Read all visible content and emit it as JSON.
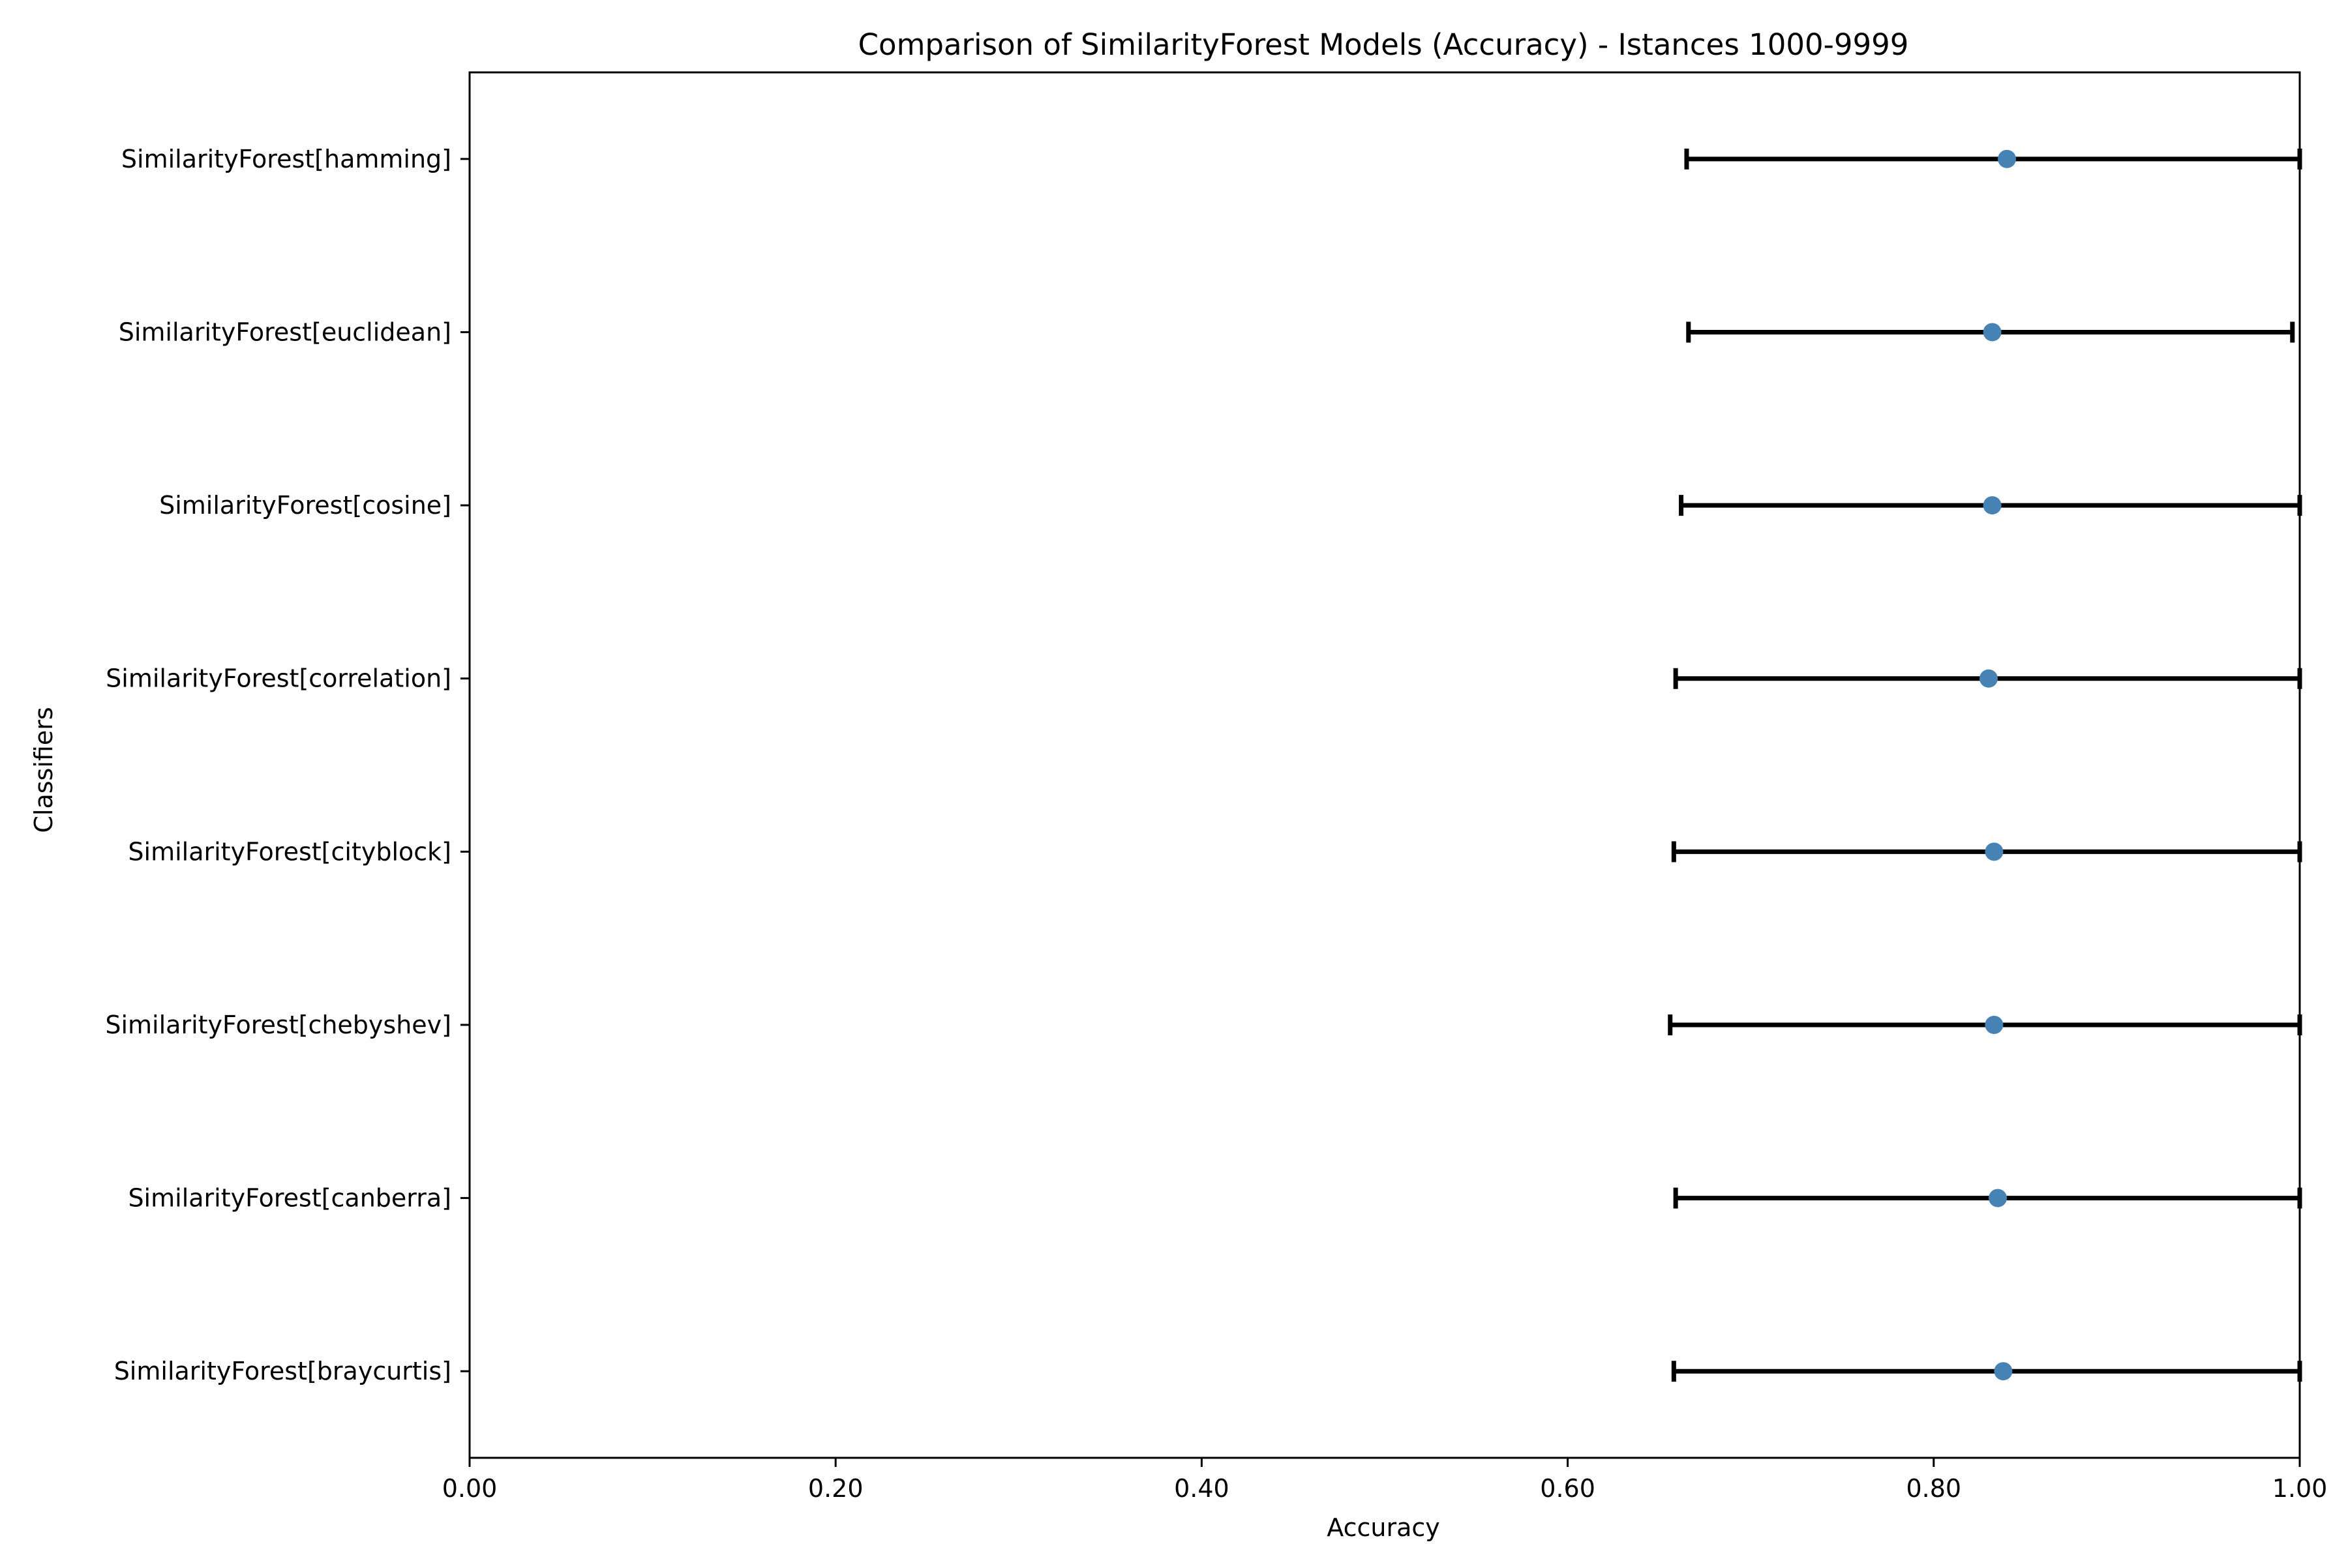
{
  "chart_data": {
    "type": "errorbar",
    "orientation": "horizontal",
    "title": "Comparison of SimilarityForest Models (Accuracy) - Istances 1000-9999",
    "xlabel": "Accuracy",
    "ylabel": "Classifiers",
    "xlim": [
      0.0,
      1.0
    ],
    "xticks": [
      0.0,
      0.2,
      0.4,
      0.6,
      0.8,
      1.0
    ],
    "xtick_labels": [
      "0.00",
      "0.20",
      "0.40",
      "0.60",
      "0.80",
      "1.00"
    ],
    "grid": false,
    "marker_color": "#4682b4",
    "errorbar_color": "#000000",
    "categories": [
      "SimilarityForest[hamming]",
      "SimilarityForest[euclidean]",
      "SimilarityForest[cosine]",
      "SimilarityForest[correlation]",
      "SimilarityForest[cityblock]",
      "SimilarityForest[chebyshev]",
      "SimilarityForest[canberra]",
      "SimilarityForest[braycurtis]"
    ],
    "points": [
      {
        "mean": 0.84,
        "low": 0.665,
        "high": 1.0
      },
      {
        "mean": 0.832,
        "low": 0.666,
        "high": 0.996
      },
      {
        "mean": 0.832,
        "low": 0.662,
        "high": 1.0
      },
      {
        "mean": 0.83,
        "low": 0.659,
        "high": 1.0
      },
      {
        "mean": 0.833,
        "low": 0.658,
        "high": 1.0
      },
      {
        "mean": 0.833,
        "low": 0.656,
        "high": 1.0
      },
      {
        "mean": 0.835,
        "low": 0.659,
        "high": 1.0
      },
      {
        "mean": 0.838,
        "low": 0.658,
        "high": 1.0
      }
    ]
  }
}
